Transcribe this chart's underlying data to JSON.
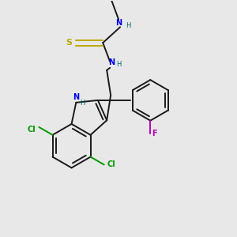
{
  "bg_color": "#e8e8e8",
  "bond_color": "#1a1a1a",
  "n_color": "#0000ee",
  "s_color": "#bbaa00",
  "cl_color": "#009900",
  "f_color": "#bb00bb",
  "nh_color": "#006666",
  "line_width": 1.4,
  "figsize": [
    3.0,
    3.0
  ],
  "dpi": 100,
  "xlim": [
    0,
    300
  ],
  "ylim": [
    0,
    300
  ]
}
